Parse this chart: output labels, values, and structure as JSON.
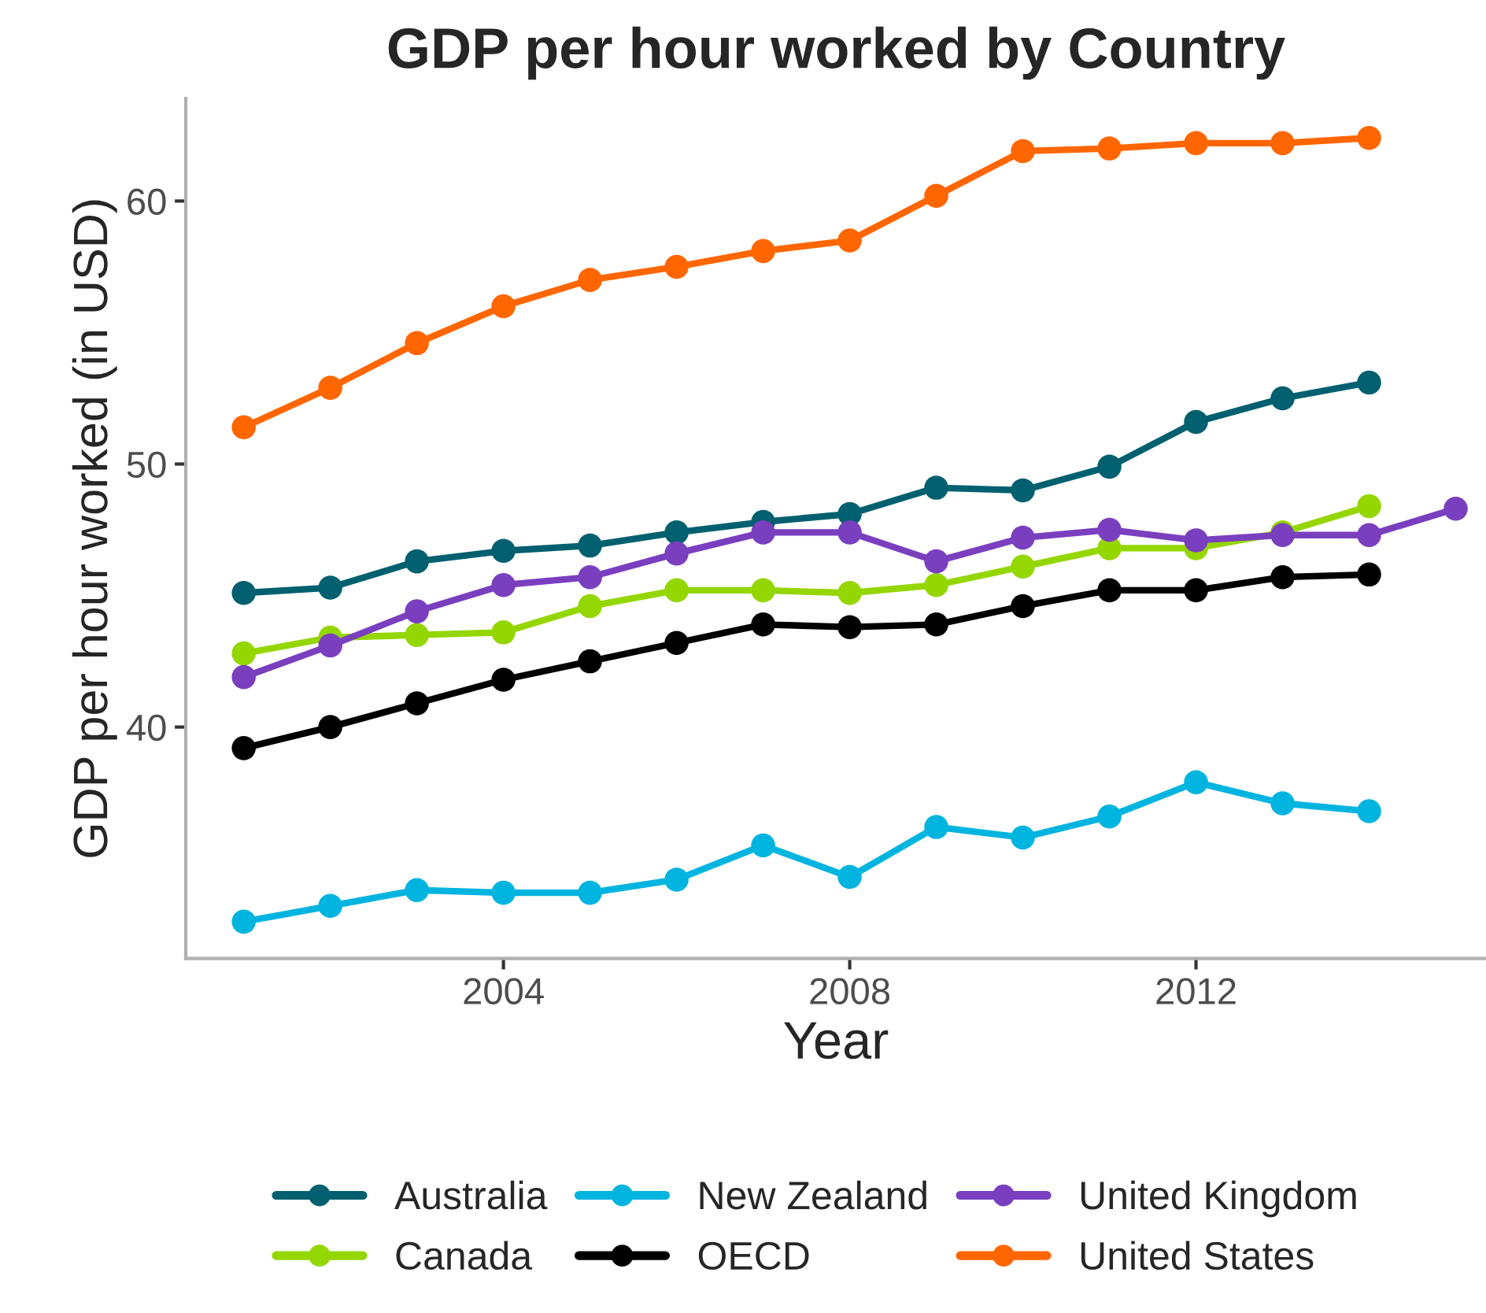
{
  "chart_data": {
    "type": "line",
    "title": "GDP per hour worked by Country",
    "xlabel": "Year",
    "ylabel": "GDP per hour worked (in USD)",
    "x": [
      2001,
      2002,
      2003,
      2004,
      2005,
      2006,
      2007,
      2008,
      2009,
      2010,
      2011,
      2012,
      2013,
      2014
    ],
    "series": [
      {
        "name": "Australia",
        "color": "#00606f",
        "values": [
          45.1,
          45.3,
          46.3,
          46.7,
          46.9,
          47.4,
          47.8,
          48.1,
          49.1,
          49.0,
          49.9,
          51.6,
          52.5,
          53.1
        ]
      },
      {
        "name": "Canada",
        "color": "#94d600",
        "values": [
          42.8,
          43.4,
          43.5,
          43.6,
          44.6,
          45.2,
          45.2,
          45.1,
          45.4,
          46.1,
          46.8,
          46.8,
          47.4,
          48.4
        ]
      },
      {
        "name": "New Zealand",
        "color": "#00b4e0",
        "values": [
          32.6,
          33.2,
          33.8,
          33.7,
          33.7,
          34.2,
          35.5,
          34.3,
          36.2,
          35.8,
          36.6,
          37.9,
          37.1,
          36.8
        ]
      },
      {
        "name": "OECD",
        "color": "#000000",
        "values": [
          39.2,
          40.0,
          40.9,
          41.8,
          42.5,
          43.2,
          43.9,
          43.8,
          43.9,
          44.6,
          45.2,
          45.2,
          45.7,
          45.8
        ]
      },
      {
        "name": "United Kingdom",
        "color": "#7a3fbf",
        "x": [
          2001,
          2002,
          2003,
          2004,
          2005,
          2006,
          2007,
          2008,
          2009,
          2010,
          2011,
          2012,
          2013,
          2014,
          2015
        ],
        "values": [
          41.9,
          43.1,
          44.4,
          45.4,
          45.7,
          46.6,
          47.4,
          47.4,
          46.3,
          47.2,
          47.5,
          47.1,
          47.3,
          47.3,
          48.3
        ]
      },
      {
        "name": "United States",
        "color": "#ff6600",
        "values": [
          51.4,
          52.9,
          54.6,
          56.0,
          57.0,
          57.5,
          58.1,
          58.5,
          60.2,
          61.9,
          62.0,
          62.2,
          62.2,
          62.4
        ]
      }
    ],
    "xlim": [
      2000.33,
      2015.35
    ],
    "xticks": [
      2004,
      2008,
      2012
    ],
    "ylim": [
      31.2,
      63.9
    ],
    "yticks": [
      40,
      50,
      60
    ],
    "grid": false,
    "legend": "bottom",
    "marker": "circle",
    "line_style": "solid"
  }
}
